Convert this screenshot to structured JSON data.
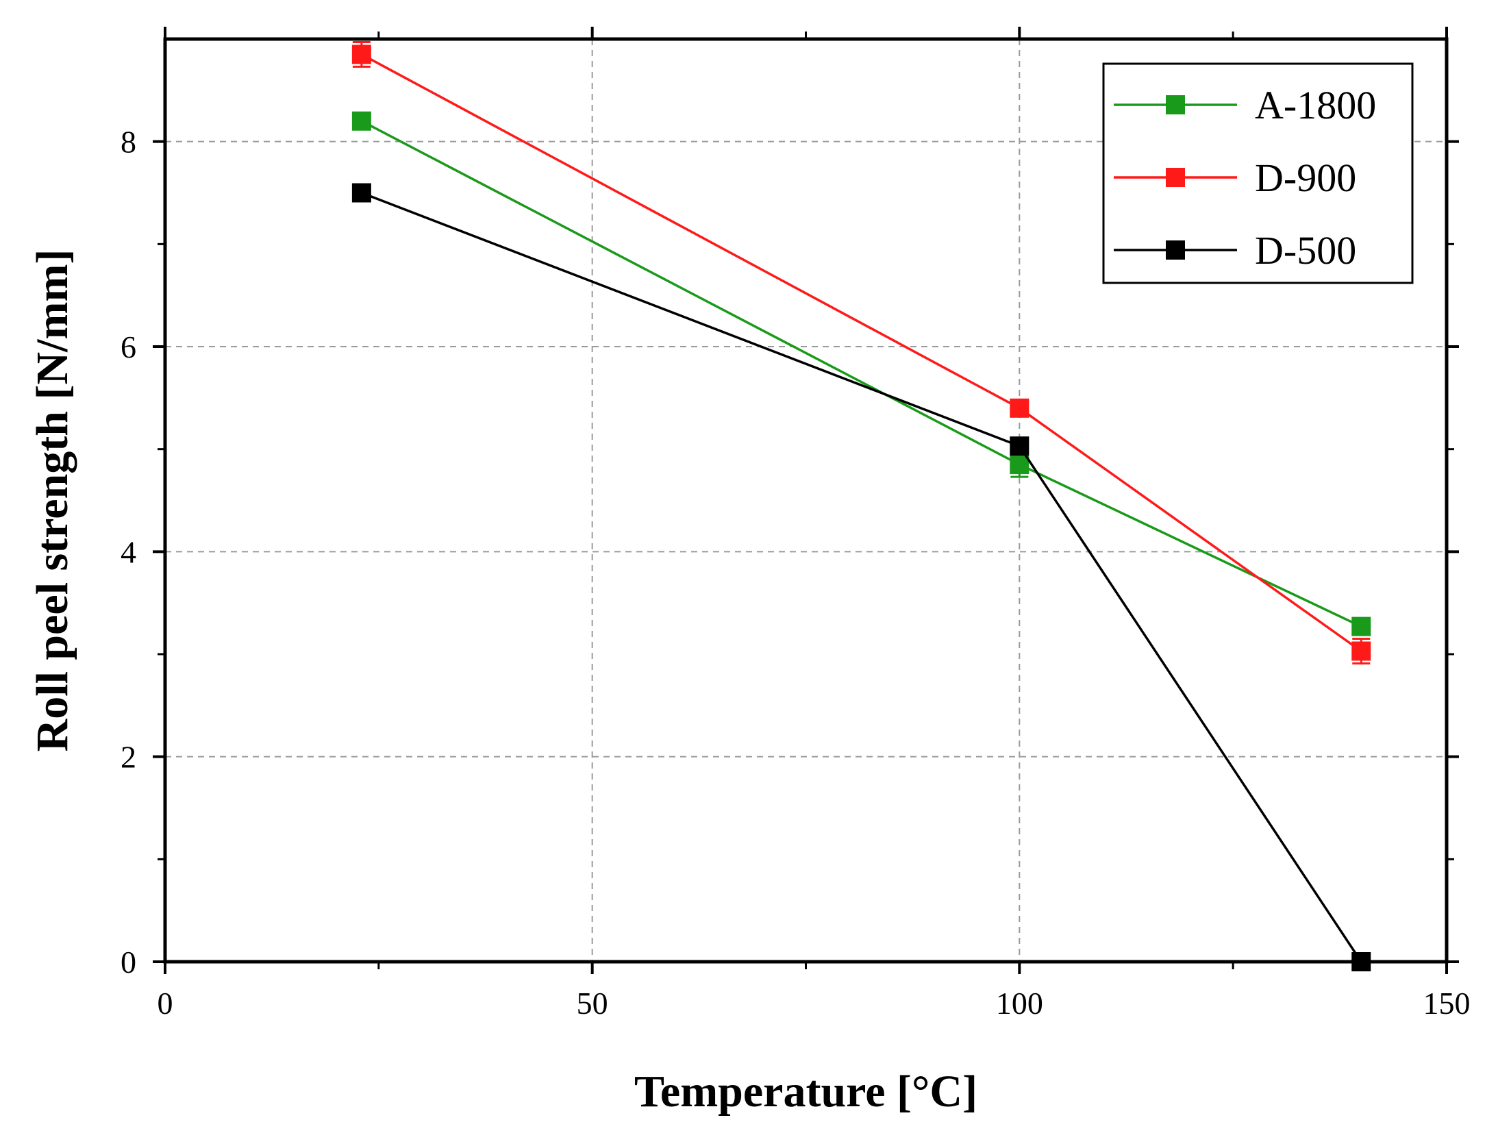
{
  "chart_data": {
    "type": "line",
    "title": "",
    "xlabel": "Temperature [°C]",
    "ylabel": "Roll peel strength [N/mm]",
    "xlim": [
      0,
      150
    ],
    "ylim": [
      0,
      9
    ],
    "xticks": [
      0,
      50,
      100,
      150
    ],
    "yticks": [
      0,
      2,
      4,
      6,
      8
    ],
    "grid": true,
    "legend_position": "top-right",
    "series": [
      {
        "name": "A-1800",
        "color": "#1a9a1a",
        "x": [
          23,
          100,
          140
        ],
        "y": [
          8.2,
          4.85,
          3.27
        ],
        "err": [
          0.08,
          0.12,
          0.06
        ]
      },
      {
        "name": "D-900",
        "color": "#ff1a1a",
        "x": [
          23,
          100,
          140
        ],
        "y": [
          8.85,
          5.4,
          3.03
        ],
        "err": [
          0.12,
          0.08,
          0.12
        ]
      },
      {
        "name": "D-500",
        "color": "#000000",
        "x": [
          23,
          100,
          140
        ],
        "y": [
          7.5,
          5.03,
          0.0
        ],
        "err": [
          0.05,
          0.06,
          0.0
        ]
      }
    ]
  }
}
